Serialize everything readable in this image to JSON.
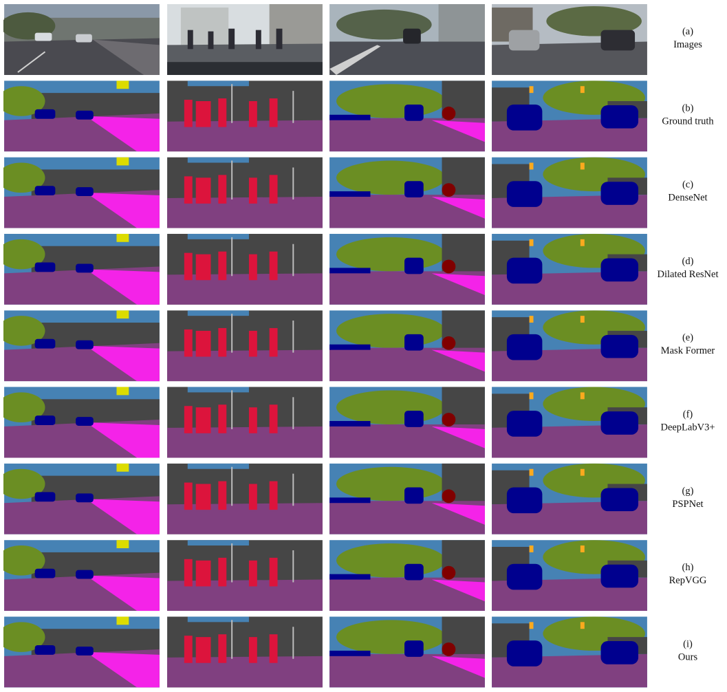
{
  "rows": [
    {
      "letter": "(a)",
      "name": "Images"
    },
    {
      "letter": "(b)",
      "name": "Ground truth"
    },
    {
      "letter": "(c)",
      "name": "DenseNet"
    },
    {
      "letter": "(d)",
      "name": "Dilated ResNet"
    },
    {
      "letter": "(e)",
      "name": "Mask Former"
    },
    {
      "letter": "(f)",
      "name": "DeepLabV3+"
    },
    {
      "letter": "(g)",
      "name": "PSPNet"
    },
    {
      "letter": "(h)",
      "name": "RepVGG"
    },
    {
      "letter": "(i)",
      "name": "Ours"
    }
  ]
}
